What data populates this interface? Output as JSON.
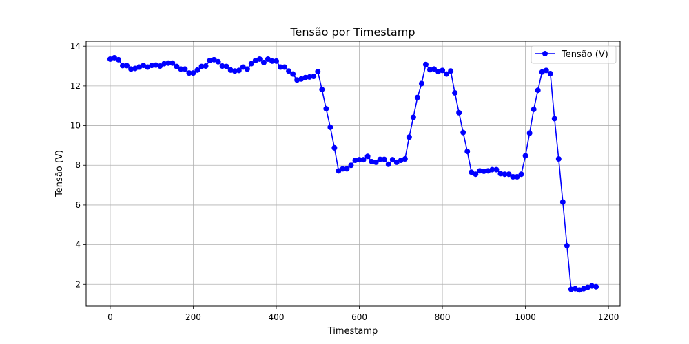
{
  "chart_data": {
    "type": "line",
    "title": "Tensão por Timestamp",
    "xlabel": "Timestamp",
    "ylabel": "Tensão (V)",
    "xlim": [
      -58,
      1228
    ],
    "ylim": [
      0.9,
      14.25
    ],
    "xticks": [
      0,
      200,
      400,
      600,
      800,
      1000,
      1200
    ],
    "yticks": [
      2,
      4,
      6,
      8,
      10,
      12,
      14
    ],
    "grid": true,
    "legend_position": "top-right",
    "series": [
      {
        "name": "Tensão (V)",
        "color": "#0000ff",
        "marker": "circle",
        "x": [
          0,
          10,
          20,
          30,
          40,
          50,
          60,
          70,
          80,
          90,
          100,
          110,
          120,
          130,
          140,
          150,
          160,
          170,
          180,
          190,
          200,
          210,
          220,
          230,
          240,
          250,
          260,
          270,
          280,
          290,
          300,
          310,
          320,
          330,
          340,
          350,
          360,
          370,
          380,
          390,
          400,
          410,
          420,
          430,
          440,
          450,
          460,
          470,
          480,
          490,
          500,
          510,
          520,
          530,
          540,
          550,
          560,
          570,
          580,
          590,
          600,
          610,
          620,
          630,
          640,
          650,
          660,
          670,
          680,
          690,
          700,
          710,
          720,
          730,
          740,
          750,
          760,
          770,
          780,
          790,
          800,
          810,
          820,
          830,
          840,
          850,
          860,
          870,
          880,
          890,
          900,
          910,
          920,
          930,
          940,
          950,
          960,
          970,
          980,
          990,
          1000,
          1010,
          1020,
          1030,
          1040,
          1050,
          1060,
          1070,
          1080,
          1090,
          1100,
          1110,
          1120,
          1130,
          1140,
          1150,
          1160,
          1170
        ],
        "y": [
          13.35,
          13.42,
          13.32,
          13.02,
          13.02,
          12.85,
          12.88,
          12.95,
          13.03,
          12.95,
          13.03,
          13.05,
          13.0,
          13.12,
          13.15,
          13.15,
          12.98,
          12.85,
          12.85,
          12.65,
          12.65,
          12.8,
          12.98,
          13.0,
          13.28,
          13.32,
          13.22,
          13.0,
          12.98,
          12.8,
          12.75,
          12.78,
          12.95,
          12.85,
          13.12,
          13.28,
          13.35,
          13.18,
          13.35,
          13.25,
          13.25,
          12.95,
          12.95,
          12.75,
          12.6,
          12.3,
          12.35,
          12.42,
          12.45,
          12.48,
          12.72,
          11.82,
          10.85,
          9.92,
          8.88,
          7.72,
          7.82,
          7.82,
          8.0,
          8.25,
          8.28,
          8.28,
          8.45,
          8.18,
          8.15,
          8.3,
          8.3,
          8.05,
          8.28,
          8.15,
          8.25,
          8.32,
          9.42,
          10.42,
          11.42,
          12.12,
          13.08,
          12.82,
          12.85,
          12.72,
          12.78,
          12.6,
          12.75,
          11.65,
          10.65,
          9.65,
          8.7,
          7.65,
          7.55,
          7.72,
          7.7,
          7.72,
          7.78,
          7.78,
          7.58,
          7.55,
          7.55,
          7.42,
          7.42,
          7.55,
          8.48,
          9.62,
          10.82,
          11.78,
          12.7,
          12.78,
          12.62,
          10.35,
          8.32,
          6.15,
          3.95,
          1.75,
          1.78,
          1.72,
          1.78,
          1.85,
          1.92,
          1.88
        ]
      }
    ]
  }
}
